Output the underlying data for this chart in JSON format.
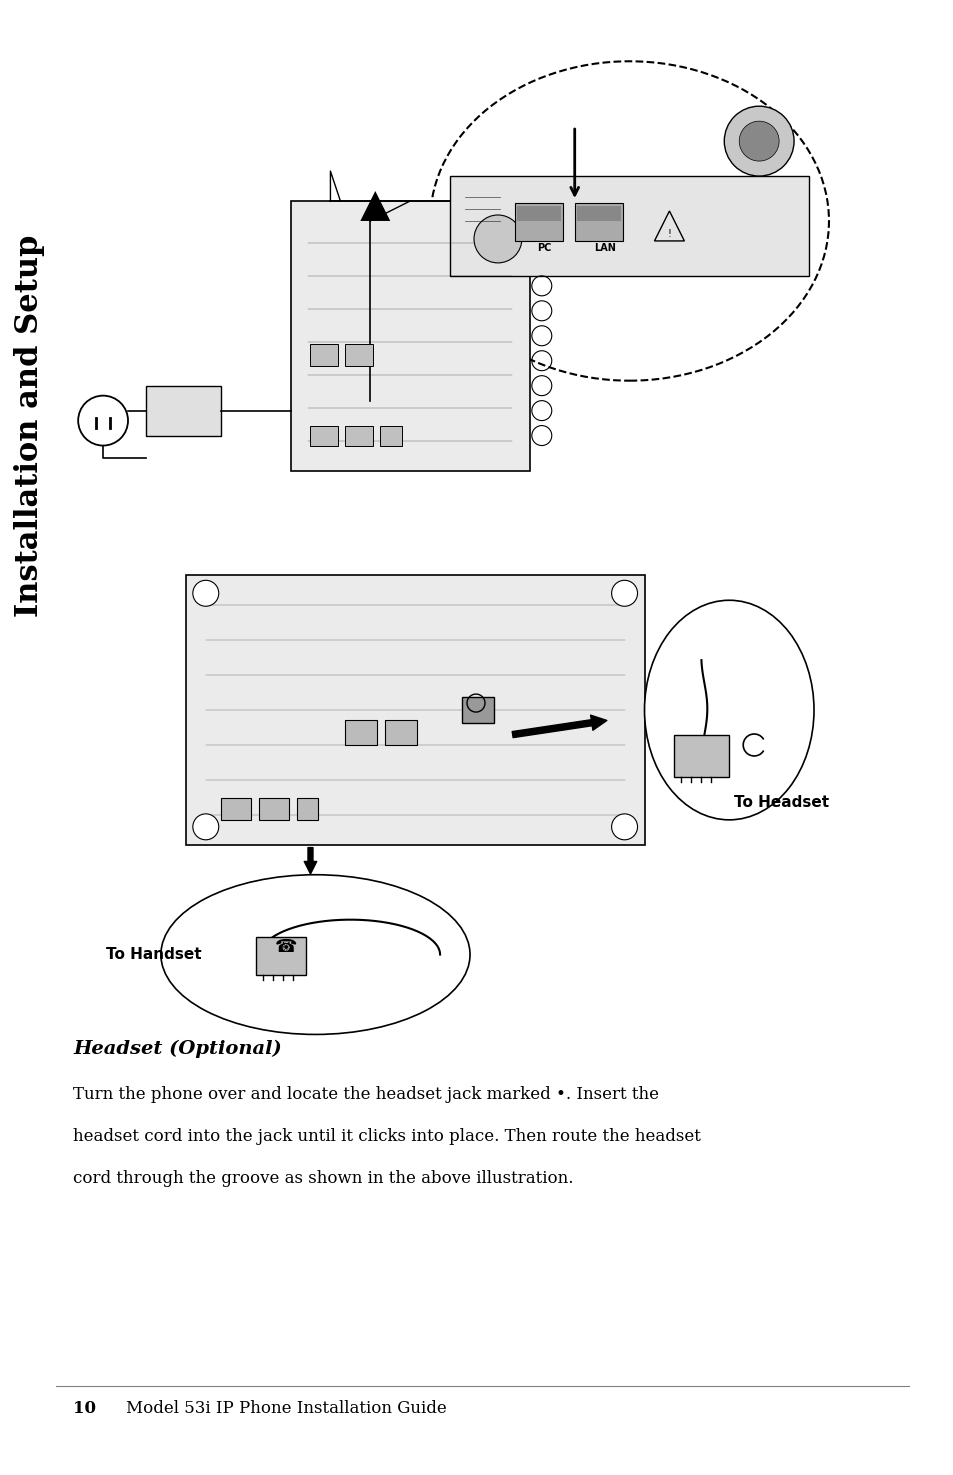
{
  "bg_color": "#ffffff",
  "page_width": 9.54,
  "page_height": 14.75,
  "sidebar_text": "Installation and Setup",
  "sidebar_color": "#000000",
  "sidebar_fontsize": 22,
  "section_title": "Headset (Optional)",
  "section_title_fontsize": 14,
  "body_lines": [
    "Turn the phone over and locate the headset jack marked •. Insert the",
    "headset cord into the jack until it clicks into place. Then route the headset",
    "cord through the groove as shown in the above illustration."
  ],
  "body_fontsize": 12,
  "footer_number": "10",
  "footer_text": "Model 53i IP Phone Installation Guide",
  "footer_fontsize": 12,
  "to_headset_label": "To Headset",
  "to_handset_label": "To Handset",
  "label_fontsize": 11
}
